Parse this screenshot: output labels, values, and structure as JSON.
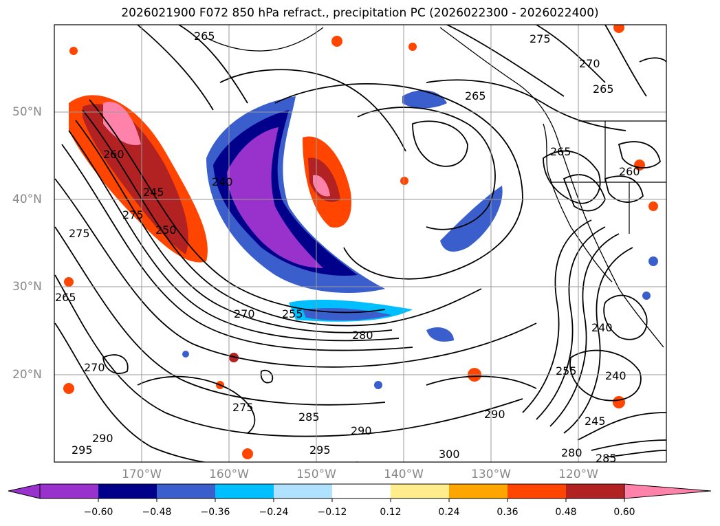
{
  "title": "2026021900 F072 850 hPa refract., precipitation PC (2026022300 - 2026022400)",
  "map": {
    "lat_labels": [
      "50°N",
      "40°N",
      "30°N",
      "20°N"
    ],
    "lon_labels": [
      "170°W",
      "160°W",
      "150°W",
      "140°W",
      "130°W",
      "120°W"
    ],
    "contour_labels": [
      "265",
      "275",
      "270",
      "265",
      "265",
      "260",
      "260",
      "240",
      "245",
      "250",
      "275",
      "275",
      "265",
      "270",
      "255",
      "280",
      "270",
      "275",
      "285",
      "290",
      "295",
      "290",
      "300",
      "295",
      "290",
      "255",
      "240",
      "240",
      "245",
      "280",
      "285",
      "265"
    ],
    "gridline_color": "#999999"
  },
  "colorbar": {
    "ticks": [
      "−0.60",
      "−0.48",
      "−0.36",
      "−0.24",
      "−0.12",
      "0.12",
      "0.24",
      "0.36",
      "0.48",
      "0.60"
    ],
    "colors": [
      "#9932cc",
      "#00008b",
      "#3a5fcd",
      "#00bfff",
      "#b0e2ff",
      "#ffffff",
      "#ffec8b",
      "#ffa500",
      "#ff4500",
      "#b22222",
      "#ff82ab"
    ]
  }
}
